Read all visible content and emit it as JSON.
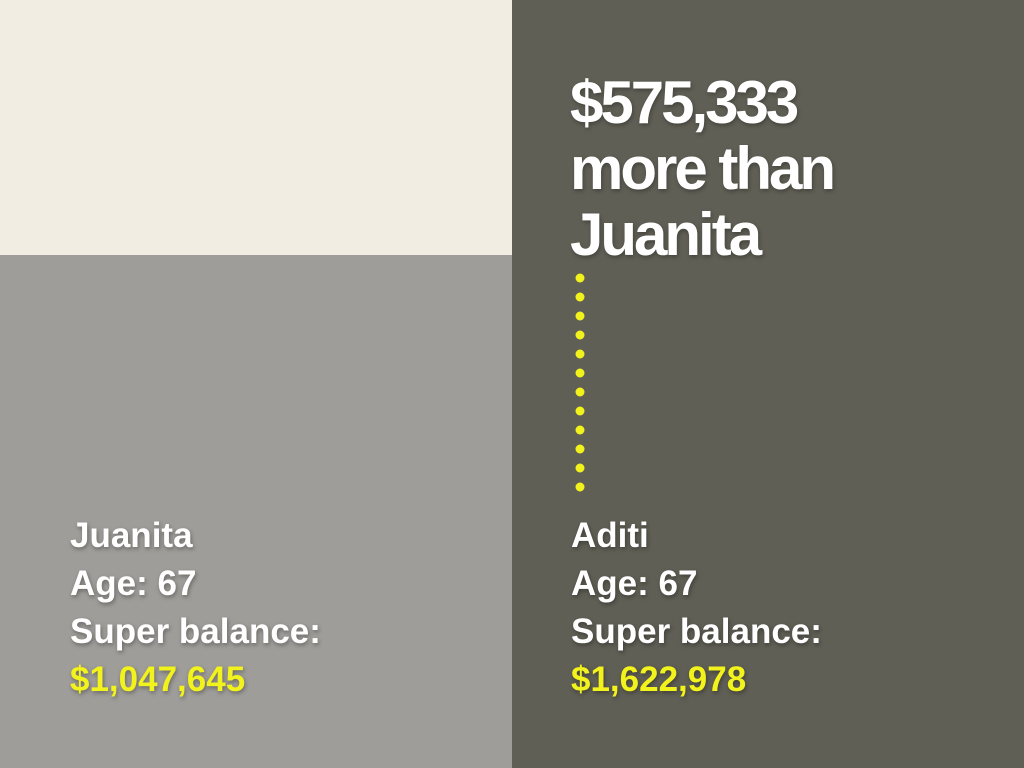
{
  "headline": {
    "lines": [
      "$575,333",
      "more than",
      "Juanita"
    ]
  },
  "people": [
    {
      "name": "Juanita",
      "age": "Age: 67",
      "balance_label": "Super balance:",
      "balance": "$1,047,645"
    },
    {
      "name": "Aditi",
      "age": "Age: 67",
      "balance_label": "Super balance:",
      "balance": "$1,622,978"
    }
  ]
}
